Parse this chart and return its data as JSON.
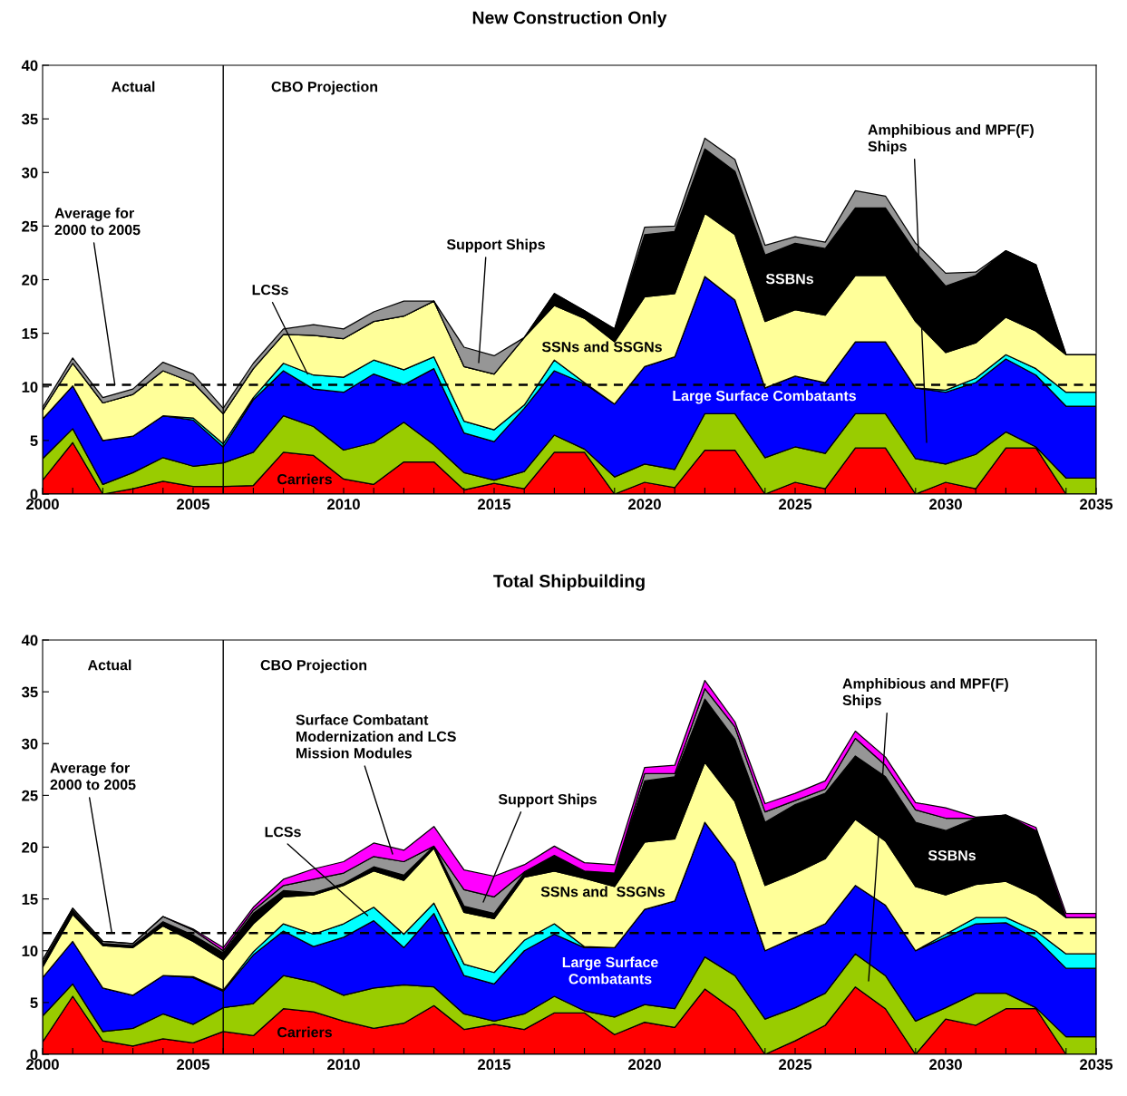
{
  "chart_data": [
    {
      "type": "area",
      "stacked": true,
      "title": "New Construction Only",
      "x": [
        2000,
        2001,
        2002,
        2003,
        2004,
        2005,
        2006,
        2007,
        2008,
        2009,
        2010,
        2011,
        2012,
        2013,
        2014,
        2015,
        2016,
        2017,
        2018,
        2019,
        2020,
        2021,
        2022,
        2023,
        2024,
        2025,
        2026,
        2027,
        2028,
        2029,
        2030,
        2031,
        2032,
        2033,
        2034,
        2035
      ],
      "xlim": [
        2000,
        2035
      ],
      "xticks": [
        2000,
        {
          "value": 2001,
          "label": null
        },
        {
          "value": 2002,
          "label": null
        },
        {
          "value": 2003,
          "label": null
        },
        {
          "value": 2004,
          "label": null
        },
        2005,
        {
          "value": 2006,
          "label": null
        },
        {
          "value": 2007,
          "label": null
        },
        {
          "value": 2008,
          "label": null
        },
        {
          "value": 2009,
          "label": null
        },
        2010,
        {
          "value": 2011,
          "label": null
        },
        {
          "value": 2012,
          "label": null
        },
        {
          "value": 2013,
          "label": null
        },
        {
          "value": 2014,
          "label": null
        },
        2015,
        {
          "value": 2016,
          "label": null
        },
        {
          "value": 2017,
          "label": null
        },
        {
          "value": 2018,
          "label": null
        },
        {
          "value": 2019,
          "label": null
        },
        2020,
        {
          "value": 2021,
          "label": null
        },
        {
          "value": 2022,
          "label": null
        },
        {
          "value": 2023,
          "label": null
        },
        {
          "value": 2024,
          "label": null
        },
        2025,
        {
          "value": 2026,
          "label": null
        },
        {
          "value": 2027,
          "label": null
        },
        {
          "value": 2028,
          "label": null
        },
        {
          "value": 2029,
          "label": null
        },
        2030,
        {
          "value": 2031,
          "label": null
        },
        {
          "value": 2032,
          "label": null
        },
        {
          "value": 2033,
          "label": null
        },
        {
          "value": 2034,
          "label": null
        },
        2035
      ],
      "ylim": [
        0,
        40
      ],
      "yticks": [
        0,
        5,
        10,
        15,
        20,
        25,
        30,
        35,
        40
      ],
      "grid": false,
      "series": [
        {
          "color": "#ff0000",
          "values": [
            1.3,
            4.8,
            0,
            0.5,
            1.2,
            0.7,
            0.7,
            0.8,
            3.9,
            3.6,
            1.4,
            0.9,
            3.0,
            3.0,
            0.4,
            1.0,
            0.5,
            3.9,
            3.9,
            0,
            1.1,
            0.6,
            4.1,
            4.1,
            0,
            1.1,
            0.5,
            4.3,
            4.3,
            0,
            1.1,
            0.5,
            4.3,
            4.3,
            0,
            0
          ]
        },
        {
          "color": "#99cc00",
          "values": [
            2.0,
            1.3,
            0.9,
            1.5,
            2.2,
            1.9,
            2.2,
            3.1,
            3.4,
            2.7,
            2.7,
            3.9,
            3.7,
            1.6,
            1.6,
            0.3,
            1.6,
            1.6,
            0.3,
            1.6,
            1.7,
            1.7,
            3.4,
            3.4,
            3.4,
            3.3,
            3.3,
            3.2,
            3.2,
            3.3,
            1.7,
            3.2,
            1.5,
            0.1,
            1.5,
            1.5
          ]
        },
        {
          "color": "#0000ff",
          "values": [
            3.7,
            4.0,
            4.1,
            3.4,
            3.9,
            4.3,
            1.5,
            4.9,
            4.2,
            3.5,
            5.4,
            6.4,
            3.5,
            7.1,
            3.7,
            3.6,
            5.9,
            6.0,
            6.1,
            6.8,
            9.1,
            10.5,
            12.8,
            10.6,
            6.5,
            6.6,
            6.6,
            6.7,
            6.7,
            6.6,
            6.7,
            6.7,
            6.8,
            6.7,
            6.7,
            6.7
          ]
        },
        {
          "color": "#00ffff",
          "values": [
            0,
            0,
            0,
            0,
            0,
            0.2,
            0.3,
            0.2,
            0.7,
            1.3,
            1.4,
            1.3,
            1.4,
            1.1,
            1.1,
            1.1,
            0.3,
            1.0,
            0.1,
            0,
            0,
            0,
            0,
            0,
            0,
            0,
            0,
            0,
            0,
            0,
            0.2,
            0.4,
            0.4,
            0.6,
            1.3,
            1.3
          ]
        },
        {
          "color": "#ffff99",
          "values": [
            0.8,
            2.1,
            3.5,
            3.9,
            4.2,
            3.3,
            2.8,
            2.7,
            2.7,
            3.7,
            3.6,
            3.6,
            5.0,
            5.2,
            5.1,
            5.2,
            6.3,
            5.1,
            6.0,
            5.8,
            6.5,
            5.9,
            5.9,
            6.1,
            6.2,
            6.2,
            6.3,
            6.2,
            6.2,
            6.2,
            3.5,
            3.3,
            3.5,
            3.5,
            3.5,
            3.5
          ]
        },
        {
          "color": "#000000",
          "values": [
            0,
            0,
            0,
            0,
            0,
            0,
            0,
            0,
            0,
            0,
            0,
            0,
            0,
            0,
            0,
            0,
            0,
            1.1,
            0.7,
            1.2,
            5.8,
            5.8,
            6.0,
            5.9,
            6.2,
            6.2,
            6.2,
            6.3,
            6.3,
            6.5,
            6.2,
            6.3,
            6.2,
            6.2,
            0,
            0
          ]
        },
        {
          "color": "#969696",
          "values": [
            0.3,
            0.5,
            0.5,
            0.5,
            0.8,
            0.8,
            0.5,
            0.5,
            0.5,
            1.0,
            0.9,
            0.9,
            1.4,
            0,
            1.8,
            1.7,
            0,
            0,
            0,
            0,
            0.7,
            0.5,
            1.0,
            1.1,
            0.9,
            0.6,
            0.6,
            1.6,
            1.1,
            0.8,
            1.2,
            0.3,
            0,
            0,
            0,
            0
          ]
        }
      ],
      "ref_lines": [
        {
          "axis": "x",
          "value": 2006,
          "color": "#000000",
          "line_style": "solid"
        },
        {
          "axis": "y",
          "value": 10.2,
          "color": "#000000",
          "line_style": "dashed"
        }
      ],
      "annotations": [
        "Actual",
        "CBO Projection",
        {
          "text": "Average for\n2000 to 2005",
          "x": 2002.4,
          "y": 10.2
        },
        {
          "text": "LCSs",
          "x": 2008.8,
          "y": 11.2
        },
        "Support Ships",
        "SSNs and SSGNs",
        "Large Surface Combatants",
        "SSBNs",
        "Carriers",
        "Amphibious and MPF(F)\nShips"
      ]
    },
    {
      "type": "area",
      "stacked": true,
      "title": "Total Shipbuilding",
      "x": [
        2000,
        2001,
        2002,
        2003,
        2004,
        2005,
        2006,
        2007,
        2008,
        2009,
        2010,
        2011,
        2012,
        2013,
        2014,
        2015,
        2016,
        2017,
        2018,
        2019,
        2020,
        2021,
        2022,
        2023,
        2024,
        2025,
        2026,
        2027,
        2028,
        2029,
        2030,
        2031,
        2032,
        2033,
        2034,
        2035
      ],
      "xlim": [
        2000,
        2035
      ],
      "xticks": [
        2000,
        {
          "value": 2001,
          "label": null
        },
        {
          "value": 2002,
          "label": null
        },
        {
          "value": 2003,
          "label": null
        },
        {
          "value": 2004,
          "label": null
        },
        2005,
        {
          "value": 2006,
          "label": null
        },
        {
          "value": 2007,
          "label": null
        },
        {
          "value": 2008,
          "label": null
        },
        {
          "value": 2009,
          "label": null
        },
        2010,
        {
          "value": 2011,
          "label": null
        },
        {
          "value": 2012,
          "label": null
        },
        {
          "value": 2013,
          "label": null
        },
        {
          "value": 2014,
          "label": null
        },
        2015,
        {
          "value": 2016,
          "label": null
        },
        {
          "value": 2017,
          "label": null
        },
        {
          "value": 2018,
          "label": null
        },
        {
          "value": 2019,
          "label": null
        },
        2020,
        {
          "value": 2021,
          "label": null
        },
        {
          "value": 2022,
          "label": null
        },
        {
          "value": 2023,
          "label": null
        },
        {
          "value": 2024,
          "label": null
        },
        2025,
        {
          "value": 2026,
          "label": null
        },
        {
          "value": 2027,
          "label": null
        },
        {
          "value": 2028,
          "label": null
        },
        {
          "value": 2029,
          "label": null
        },
        2030,
        {
          "value": 2031,
          "label": null
        },
        {
          "value": 2032,
          "label": null
        },
        {
          "value": 2033,
          "label": null
        },
        {
          "value": 2034,
          "label": null
        },
        2035
      ],
      "ylim": [
        0,
        40
      ],
      "yticks": [
        0,
        5,
        10,
        15,
        20,
        25,
        30,
        35,
        40
      ],
      "grid": false,
      "series": [
        {
          "color": "#ff0000",
          "values": [
            1.2,
            5.6,
            1.3,
            0.8,
            1.5,
            1.1,
            2.2,
            1.8,
            4.4,
            4.1,
            3.2,
            2.5,
            3.0,
            4.7,
            2.4,
            2.9,
            2.4,
            4.0,
            4.0,
            1.9,
            3.1,
            2.6,
            6.3,
            4.2,
            0,
            1.3,
            2.8,
            6.5,
            4.4,
            0,
            3.4,
            2.8,
            4.4,
            4.4,
            0,
            0
          ]
        },
        {
          "color": "#99cc00",
          "values": [
            2.5,
            1.2,
            0.9,
            1.7,
            2.4,
            1.8,
            2.3,
            3.1,
            3.2,
            2.9,
            2.5,
            3.9,
            3.7,
            1.8,
            1.5,
            0.3,
            1.5,
            1.6,
            0.2,
            1.7,
            1.7,
            1.8,
            3.1,
            3.4,
            3.4,
            3.2,
            3.1,
            3.2,
            3.2,
            3.2,
            1.1,
            3.1,
            1.5,
            0.1,
            1.7,
            1.7
          ]
        },
        {
          "color": "#0000ff",
          "values": [
            3.7,
            4.1,
            4.2,
            3.2,
            3.7,
            4.5,
            1.6,
            4.7,
            4.3,
            3.4,
            5.6,
            6.5,
            3.6,
            7.1,
            3.7,
            3.6,
            6.1,
            6.0,
            6.1,
            6.7,
            9.2,
            10.4,
            13.0,
            10.9,
            6.6,
            6.8,
            6.7,
            6.6,
            6.8,
            6.8,
            6.8,
            6.7,
            6.8,
            6.7,
            6.6,
            6.6
          ]
        },
        {
          "color": "#00ffff",
          "values": [
            0,
            0,
            0,
            0,
            0,
            0.1,
            0.1,
            0.3,
            0.7,
            1.2,
            1.3,
            1.3,
            1.3,
            1.0,
            1.1,
            1.1,
            1.0,
            1.0,
            0.1,
            0,
            0,
            0,
            0,
            0,
            0,
            0,
            0,
            0,
            0,
            0,
            0.3,
            0.6,
            0.5,
            0.7,
            1.4,
            1.4
          ]
        },
        {
          "color": "#ffff99",
          "values": [
            1.0,
            2.6,
            4.1,
            4.6,
            4.8,
            3.4,
            2.9,
            2.7,
            2.6,
            3.8,
            3.7,
            3.5,
            5.2,
            5.3,
            5.0,
            5.2,
            6.1,
            5.1,
            6.6,
            5.9,
            6.5,
            6.0,
            5.8,
            5.9,
            6.3,
            6.2,
            6.3,
            6.4,
            6.2,
            6.2,
            3.8,
            3.2,
            3.5,
            3.5,
            3.5,
            3.5
          ]
        },
        {
          "color": "#000000",
          "values": [
            0.4,
            0.4,
            0.2,
            0.2,
            0.4,
            0.6,
            0.7,
            1.0,
            0.6,
            0.2,
            0.2,
            0.4,
            0.5,
            0.2,
            0.6,
            0.5,
            0.4,
            1.5,
            0.7,
            1.3,
            5.9,
            6.0,
            6.1,
            6.0,
            6.1,
            6.6,
            6.3,
            6.1,
            6.2,
            6.2,
            6.2,
            6.4,
            6.4,
            6.2,
            0,
            0
          ]
        },
        {
          "color": "#969696",
          "values": [
            0.3,
            0.2,
            0.2,
            0.2,
            0.5,
            0.5,
            0.2,
            0.3,
            0.5,
            1.3,
            1.0,
            1.0,
            1.3,
            0,
            1.6,
            1.6,
            0.1,
            0,
            0,
            0,
            0.7,
            0.3,
            1.0,
            1.2,
            1.0,
            0.4,
            0.4,
            1.7,
            1.1,
            1.2,
            1.2,
            0,
            0,
            0,
            0,
            0
          ]
        },
        {
          "color": "#ff00ff",
          "values": [
            0,
            0,
            0,
            0,
            0,
            0.1,
            0.3,
            0.3,
            0.6,
            1.0,
            1.1,
            1.3,
            1.1,
            1.9,
            1.9,
            2.0,
            0.7,
            0.9,
            0.8,
            0.8,
            0.6,
            0.8,
            0.8,
            0.5,
            0.8,
            0.7,
            0.8,
            0.7,
            0.8,
            0.7,
            1.0,
            0.1,
            0,
            0.3,
            0.4,
            0.4
          ]
        }
      ],
      "ref_lines": [
        {
          "axis": "x",
          "value": 2006,
          "color": "#000000",
          "line_style": "solid"
        },
        {
          "axis": "y",
          "value": 11.7,
          "color": "#000000",
          "line_style": "dashed"
        }
      ],
      "annotations": [
        "Actual",
        "CBO Projection",
        {
          "text": "Average for\n2000 to 2005",
          "x": 2002.3,
          "y": 11.7
        },
        "Surface Combatant\nModernization and LCS\nMission Modules",
        "Support Ships",
        {
          "text": "LCSs",
          "x": 2010.8,
          "y": 13.4
        },
        "SSNs and  SSGNs",
        "Large Surface\nCombatants",
        "SSBNs",
        "Carriers",
        "Amphibious and MPF(F)\nShips"
      ]
    }
  ]
}
